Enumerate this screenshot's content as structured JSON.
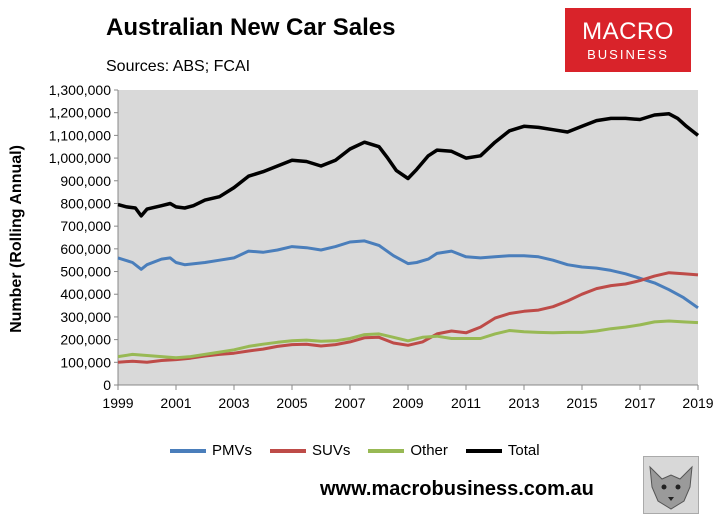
{
  "title": "Australian New Car Sales",
  "subtitle": "Sources: ABS; FCAI",
  "logo": {
    "line1": "MACRO",
    "line2": "BUSINESS",
    "color": "#d9232a"
  },
  "footer_url": "www.macrobusiness.com.au",
  "chart_data": {
    "type": "line",
    "title": "Australian New Car Sales",
    "xlabel": "",
    "ylabel": "Number (Rolling Annual)",
    "xlim": [
      1999,
      2019
    ],
    "ylim": [
      0,
      1300000
    ],
    "x_ticks": [
      "1999",
      "2001",
      "2003",
      "2005",
      "2007",
      "2009",
      "2011",
      "2013",
      "2015",
      "2017",
      "2019"
    ],
    "y_ticks": [
      "0",
      "100,000",
      "200,000",
      "300,000",
      "400,000",
      "500,000",
      "600,000",
      "700,000",
      "800,000",
      "900,000",
      "1,000,000",
      "1,100,000",
      "1,200,000",
      "1,300,000"
    ],
    "legend_position": "bottom",
    "series": [
      {
        "name": "PMVs",
        "color": "#4a7ebb",
        "x": [
          1999,
          1999.5,
          1999.8,
          2000,
          2000.5,
          2000.8,
          2001,
          2001.3,
          2002,
          2002.5,
          2003,
          2003.5,
          2004,
          2004.5,
          2005,
          2005.5,
          2006,
          2006.5,
          2007,
          2007.5,
          2008,
          2008.5,
          2009,
          2009.3,
          2009.7,
          2010,
          2010.5,
          2011,
          2011.5,
          2012,
          2012.5,
          2013,
          2013.5,
          2014,
          2014.5,
          2015,
          2015.5,
          2016,
          2016.5,
          2017,
          2017.5,
          2018,
          2018.5,
          2019
        ],
        "y": [
          560000,
          540000,
          510000,
          530000,
          555000,
          560000,
          540000,
          530000,
          540000,
          550000,
          560000,
          590000,
          585000,
          595000,
          610000,
          605000,
          595000,
          610000,
          630000,
          635000,
          615000,
          570000,
          535000,
          540000,
          555000,
          580000,
          590000,
          565000,
          560000,
          565000,
          570000,
          570000,
          565000,
          550000,
          530000,
          520000,
          515000,
          505000,
          490000,
          470000,
          450000,
          420000,
          385000,
          340000
        ]
      },
      {
        "name": "SUVs",
        "color": "#be4b48",
        "x": [
          1999,
          1999.5,
          2000,
          2000.5,
          2001,
          2001.5,
          2002,
          2002.5,
          2003,
          2003.5,
          2004,
          2004.5,
          2005,
          2005.5,
          2006,
          2006.5,
          2007,
          2007.5,
          2008,
          2008.5,
          2009,
          2009.5,
          2010,
          2010.5,
          2011,
          2011.5,
          2012,
          2012.5,
          2013,
          2013.5,
          2014,
          2014.5,
          2015,
          2015.5,
          2016,
          2016.5,
          2017,
          2017.5,
          2018,
          2018.5,
          2019
        ],
        "y": [
          100000,
          105000,
          100000,
          108000,
          112000,
          118000,
          128000,
          135000,
          140000,
          150000,
          158000,
          170000,
          178000,
          180000,
          172000,
          178000,
          190000,
          208000,
          210000,
          185000,
          175000,
          190000,
          225000,
          238000,
          230000,
          255000,
          295000,
          315000,
          325000,
          330000,
          345000,
          370000,
          400000,
          425000,
          438000,
          445000,
          460000,
          480000,
          495000,
          490000,
          485000
        ]
      },
      {
        "name": "Other",
        "color": "#98b954",
        "x": [
          1999,
          1999.5,
          2000,
          2000.5,
          2001,
          2001.5,
          2002,
          2002.5,
          2003,
          2003.5,
          2004,
          2004.5,
          2005,
          2005.5,
          2006,
          2006.5,
          2007,
          2007.5,
          2008,
          2008.5,
          2009,
          2009.5,
          2010,
          2010.5,
          2011,
          2011.5,
          2012,
          2012.5,
          2013,
          2013.5,
          2014,
          2014.5,
          2015,
          2015.5,
          2016,
          2016.5,
          2017,
          2017.5,
          2018,
          2018.5,
          2019
        ],
        "y": [
          125000,
          135000,
          130000,
          125000,
          120000,
          125000,
          135000,
          145000,
          155000,
          170000,
          180000,
          188000,
          195000,
          198000,
          193000,
          195000,
          205000,
          222000,
          225000,
          210000,
          195000,
          210000,
          215000,
          205000,
          205000,
          205000,
          225000,
          240000,
          235000,
          232000,
          230000,
          232000,
          232000,
          238000,
          248000,
          255000,
          265000,
          278000,
          282000,
          278000,
          275000
        ]
      },
      {
        "name": "Total",
        "color": "#000000",
        "x": [
          1999,
          1999.3,
          1999.6,
          1999.8,
          2000,
          2000.5,
          2000.8,
          2001,
          2001.3,
          2001.6,
          2002,
          2002.5,
          2003,
          2003.5,
          2004,
          2004.5,
          2005,
          2005.5,
          2006,
          2006.5,
          2007,
          2007.5,
          2008,
          2008.3,
          2008.6,
          2009,
          2009.3,
          2009.7,
          2010,
          2010.5,
          2011,
          2011.5,
          2012,
          2012.5,
          2013,
          2013.5,
          2014,
          2014.5,
          2015,
          2015.5,
          2016,
          2016.5,
          2017,
          2017.5,
          2018,
          2018.3,
          2018.6,
          2019
        ],
        "y": [
          795000,
          785000,
          780000,
          745000,
          775000,
          790000,
          800000,
          785000,
          780000,
          790000,
          815000,
          830000,
          870000,
          920000,
          940000,
          965000,
          990000,
          985000,
          965000,
          990000,
          1040000,
          1070000,
          1050000,
          1000000,
          945000,
          910000,
          950000,
          1010000,
          1035000,
          1030000,
          1000000,
          1010000,
          1070000,
          1120000,
          1140000,
          1135000,
          1125000,
          1115000,
          1140000,
          1165000,
          1175000,
          1175000,
          1170000,
          1190000,
          1195000,
          1175000,
          1140000,
          1100000
        ]
      }
    ]
  }
}
